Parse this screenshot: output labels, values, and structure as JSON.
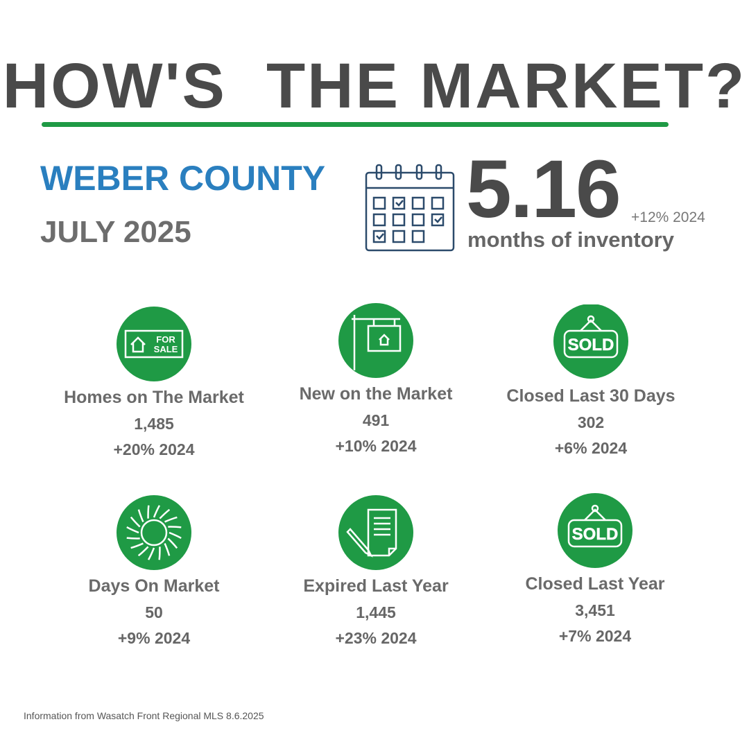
{
  "header": {
    "title": "HOW'S  THE MARKET?",
    "county": "WEBER COUNTY",
    "period": "JULY 2025"
  },
  "inventory": {
    "value": "5.16",
    "change": "+12% 2024",
    "label": "months of inventory"
  },
  "stats": [
    {
      "icon_text": [
        "FOR",
        "SALE"
      ],
      "label": "Homes on The Market",
      "value": "1,485",
      "change": "+20% 2024"
    },
    {
      "label": "New on the Market",
      "value": "491",
      "change": "+10% 2024"
    },
    {
      "icon_text": [
        "SOLD"
      ],
      "label": "Closed Last 30 Days",
      "value": "302",
      "change": "+6% 2024"
    },
    {
      "label": "Days On Market",
      "value": "50",
      "change": "+9% 2024"
    },
    {
      "label": "Expired Last Year",
      "value": "1,445",
      "change": "+23% 2024"
    },
    {
      "icon_text": [
        "SOLD"
      ],
      "label": "Closed Last Year",
      "value": "3,451",
      "change": "+7% 2024"
    }
  ],
  "footer": "Information from Wasatch Front Regional MLS 8.6.2025"
}
